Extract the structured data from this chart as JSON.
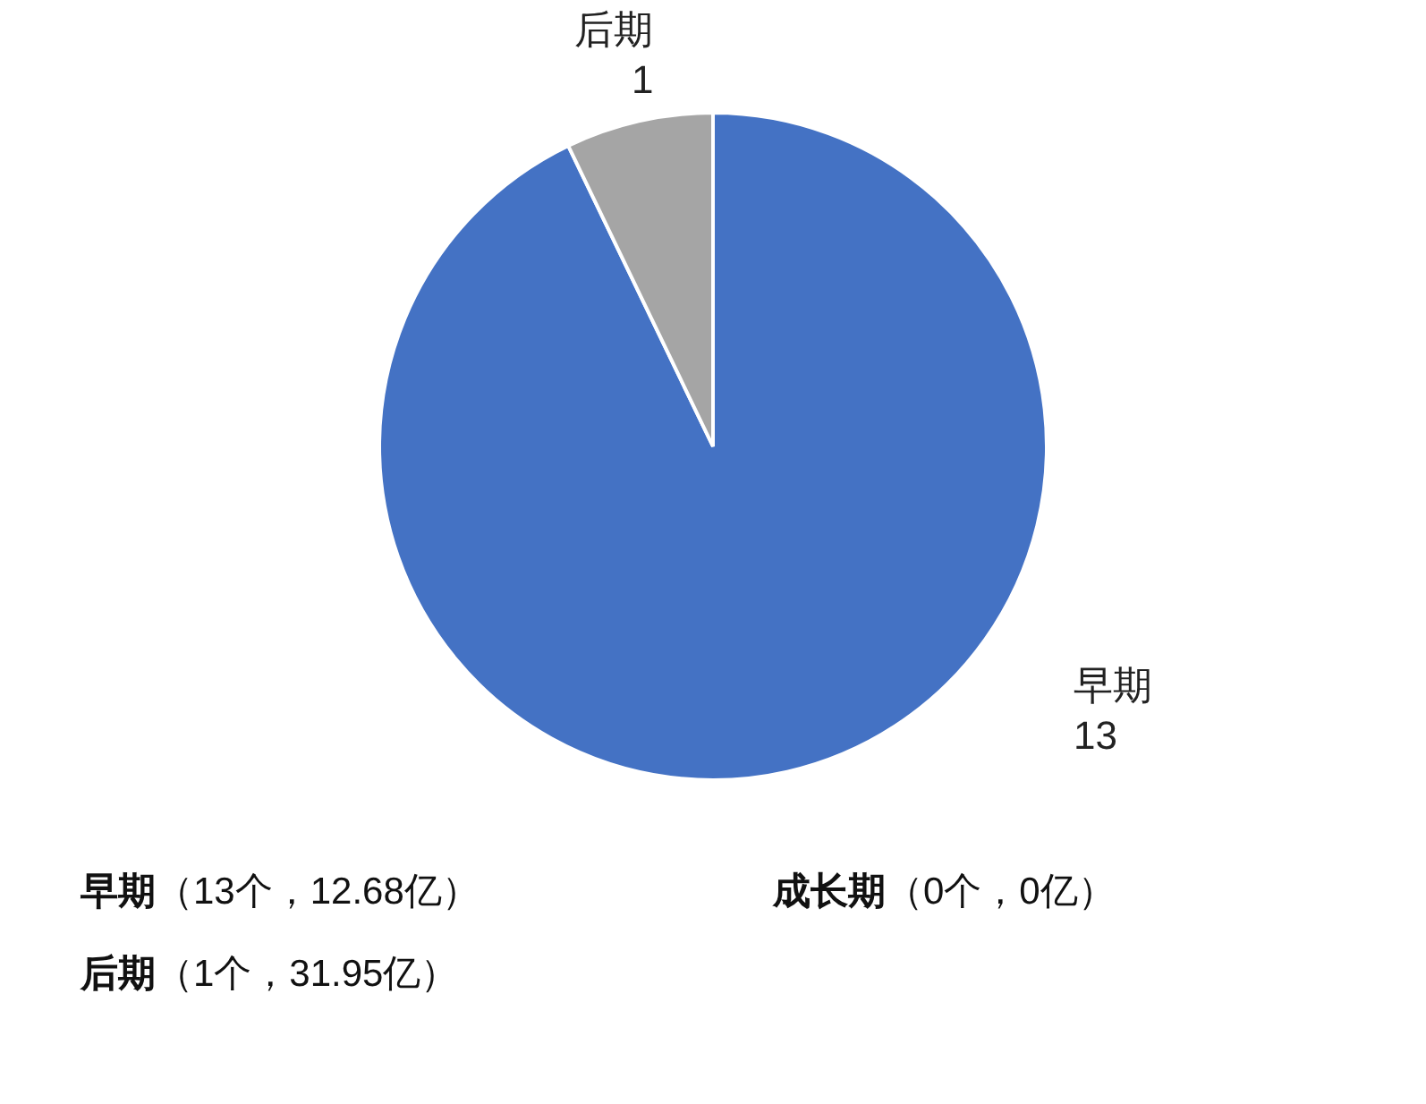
{
  "chart_data": {
    "type": "pie",
    "categories": [
      "早期",
      "后期"
    ],
    "values": [
      13,
      1
    ],
    "colors": [
      "#4472c4",
      "#a5a5a5"
    ],
    "data_labels": true,
    "annotations": [
      "早期（13个，12.68亿）",
      "成长期（0个，0亿）",
      "后期（1个，31.95亿）"
    ]
  }
}
